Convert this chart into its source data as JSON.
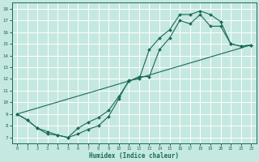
{
  "xlabel": "Humidex (Indice chaleur)",
  "bg_color": "#c5e8e0",
  "line_color": "#1a6b58",
  "grid_color": "#ffffff",
  "xlim": [
    -0.5,
    23.5
  ],
  "ylim": [
    6.5,
    18.5
  ],
  "xticks": [
    0,
    1,
    2,
    3,
    4,
    5,
    6,
    7,
    8,
    9,
    10,
    11,
    12,
    13,
    14,
    15,
    16,
    17,
    18,
    19,
    20,
    21,
    22,
    23
  ],
  "yticks": [
    7,
    8,
    9,
    10,
    11,
    12,
    13,
    14,
    15,
    16,
    17,
    18
  ],
  "line1_x": [
    0,
    1,
    2,
    3,
    4,
    5,
    6,
    7,
    8,
    9,
    10,
    11,
    12,
    13,
    14,
    15,
    16,
    17,
    18,
    19,
    20,
    21,
    22,
    23
  ],
  "line1_y": [
    9.0,
    8.5,
    7.8,
    7.3,
    7.2,
    7.0,
    7.8,
    8.3,
    8.7,
    9.3,
    10.5,
    11.8,
    12.2,
    12.2,
    14.5,
    15.5,
    17.0,
    16.7,
    17.5,
    16.5,
    16.5,
    15.0,
    14.8,
    14.9
  ],
  "line2_x": [
    0,
    1,
    2,
    3,
    4,
    5,
    6,
    7,
    8,
    9,
    10,
    11,
    12,
    13,
    14,
    15,
    16,
    17,
    18,
    19,
    20,
    21,
    22,
    23
  ],
  "line2_y": [
    9.0,
    8.5,
    7.8,
    7.5,
    7.2,
    7.0,
    7.3,
    7.7,
    8.0,
    8.8,
    10.3,
    11.9,
    12.0,
    14.5,
    15.5,
    16.2,
    17.5,
    17.5,
    17.8,
    17.5,
    16.9,
    15.0,
    14.8,
    14.9
  ],
  "line3_x": [
    0,
    23
  ],
  "line3_y": [
    9.0,
    14.9
  ]
}
